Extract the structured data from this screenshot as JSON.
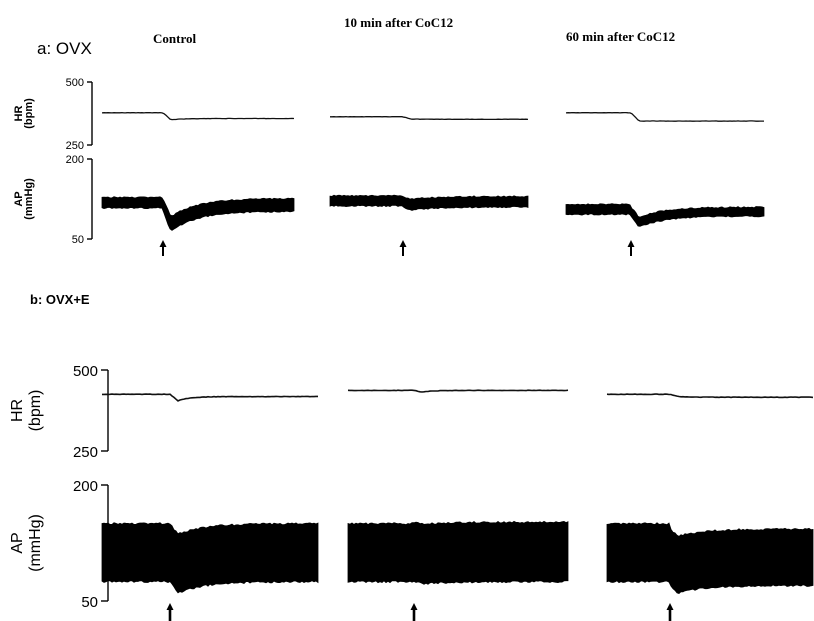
{
  "conditions": [
    "Control",
    "10 min after CoC12",
    "60 min after CoC12"
  ],
  "chart_data": [
    {
      "type": "line",
      "panel_label": "a: OVX",
      "axes": [
        {
          "id": "HR",
          "ylabel": [
            "HR",
            "(bpm)"
          ],
          "ylim": [
            250,
            500
          ],
          "ticks": [
            "500",
            "250"
          ]
        },
        {
          "id": "AP",
          "ylabel": [
            "AP",
            "(mmHg)"
          ],
          "ylim": [
            50,
            200
          ],
          "ticks": [
            "200",
            "50"
          ]
        }
      ],
      "segments": [
        {
          "condition": "Control",
          "hr": {
            "baseline": 378,
            "min": 350,
            "after": 355
          },
          "ap": {
            "upper": 128,
            "lower": 108,
            "min": 70,
            "after_upper": 126,
            "after_lower": 102
          }
        },
        {
          "condition": "10 min after CoC12",
          "hr": {
            "baseline": 362,
            "min": 353,
            "after": 352
          },
          "ap": {
            "upper": 131,
            "lower": 112,
            "min": 106,
            "after_upper": 130,
            "after_lower": 110
          }
        },
        {
          "condition": "60 min after CoC12",
          "hr": {
            "baseline": 378,
            "min": 345,
            "after": 345
          },
          "ap": {
            "upper": 115,
            "lower": 96,
            "min": 75,
            "after_upper": 110,
            "after_lower": 93
          }
        }
      ]
    },
    {
      "type": "line",
      "panel_label": "b: OVX+E",
      "axes": [
        {
          "id": "HR",
          "ylabel": [
            "HR",
            "(bpm)"
          ],
          "ylim": [
            250,
            500
          ],
          "ticks": [
            "500",
            "250"
          ]
        },
        {
          "id": "AP",
          "ylabel": [
            "AP",
            "(mmHg)"
          ],
          "ylim": [
            50,
            200
          ],
          "ticks": [
            "200",
            "50"
          ]
        }
      ],
      "segments": [
        {
          "condition": "Control",
          "hr": {
            "baseline": 425,
            "min": 405,
            "after": 418
          },
          "ap": {
            "upper": 150,
            "lower": 75,
            "min": 60,
            "after_upper": 150,
            "after_lower": 75
          }
        },
        {
          "condition": "10 min after CoC12",
          "hr": {
            "baseline": 437,
            "min": 432,
            "after": 437
          },
          "ap": {
            "upper": 150,
            "lower": 75,
            "min": 72,
            "after_upper": 152,
            "after_lower": 75
          }
        },
        {
          "condition": "60 min after CoC12",
          "hr": {
            "baseline": 425,
            "min": 418,
            "after": 416
          },
          "ap": {
            "upper": 150,
            "lower": 75,
            "min": 65,
            "after_upper": 143,
            "after_lower": 70
          }
        }
      ]
    }
  ]
}
